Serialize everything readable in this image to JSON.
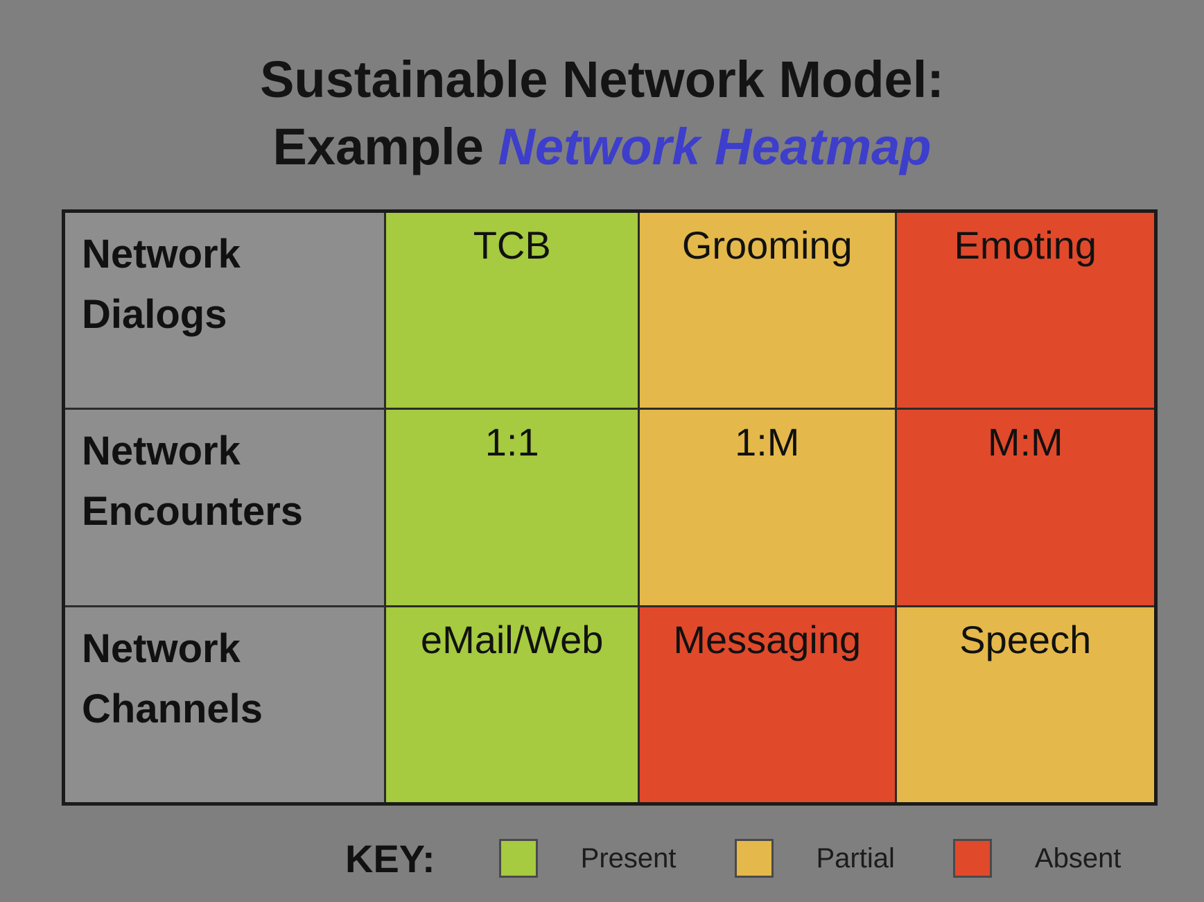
{
  "title": {
    "line1": "Sustainable Network Model:",
    "line2_prefix": "Example ",
    "line2_highlight": "Network Heatmap"
  },
  "colors": {
    "page_background": "#7f7f7f",
    "label_cell_background": "#8e8e8e",
    "present": "#a6ca40",
    "partial": "#e4b84a",
    "absent": "#e1492b",
    "title_highlight": "#3d3ecb",
    "grid_border": "#1b1b1b",
    "text": "#111111"
  },
  "heatmap": {
    "rows": [
      {
        "label": "Network Dialogs",
        "cells": [
          {
            "text": "TCB",
            "status": "present"
          },
          {
            "text": "Grooming",
            "status": "partial"
          },
          {
            "text": "Emoting",
            "status": "absent"
          }
        ]
      },
      {
        "label": "Network Encounters",
        "cells": [
          {
            "text": "1:1",
            "status": "present"
          },
          {
            "text": "1:M",
            "status": "partial"
          },
          {
            "text": "M:M",
            "status": "absent"
          }
        ]
      },
      {
        "label": "Network Channels",
        "cells": [
          {
            "text": "eMail/Web",
            "status": "present"
          },
          {
            "text": "Messaging",
            "status": "absent"
          },
          {
            "text": "Speech",
            "status": "partial"
          }
        ]
      }
    ]
  },
  "key": {
    "label": "KEY:",
    "items": [
      {
        "label": "Present",
        "status": "present"
      },
      {
        "label": "Partial",
        "status": "partial"
      },
      {
        "label": "Absent",
        "status": "absent"
      }
    ]
  },
  "chart_data": {
    "type": "heatmap",
    "title": "Sustainable Network Model: Example Network Heatmap",
    "rows": [
      "Network Dialogs",
      "Network Encounters",
      "Network Channels"
    ],
    "cells": [
      [
        {
          "label": "TCB",
          "value": "Present"
        },
        {
          "label": "Grooming",
          "value": "Partial"
        },
        {
          "label": "Emoting",
          "value": "Absent"
        }
      ],
      [
        {
          "label": "1:1",
          "value": "Present"
        },
        {
          "label": "1:M",
          "value": "Partial"
        },
        {
          "label": "M:M",
          "value": "Absent"
        }
      ],
      [
        {
          "label": "eMail/Web",
          "value": "Present"
        },
        {
          "label": "Messaging",
          "value": "Absent"
        },
        {
          "label": "Speech",
          "value": "Partial"
        }
      ]
    ],
    "legend": [
      {
        "label": "Present",
        "color": "#a6ca40"
      },
      {
        "label": "Partial",
        "color": "#e4b84a"
      },
      {
        "label": "Absent",
        "color": "#e1492b"
      }
    ],
    "legend_position": "bottom",
    "grid": true
  }
}
